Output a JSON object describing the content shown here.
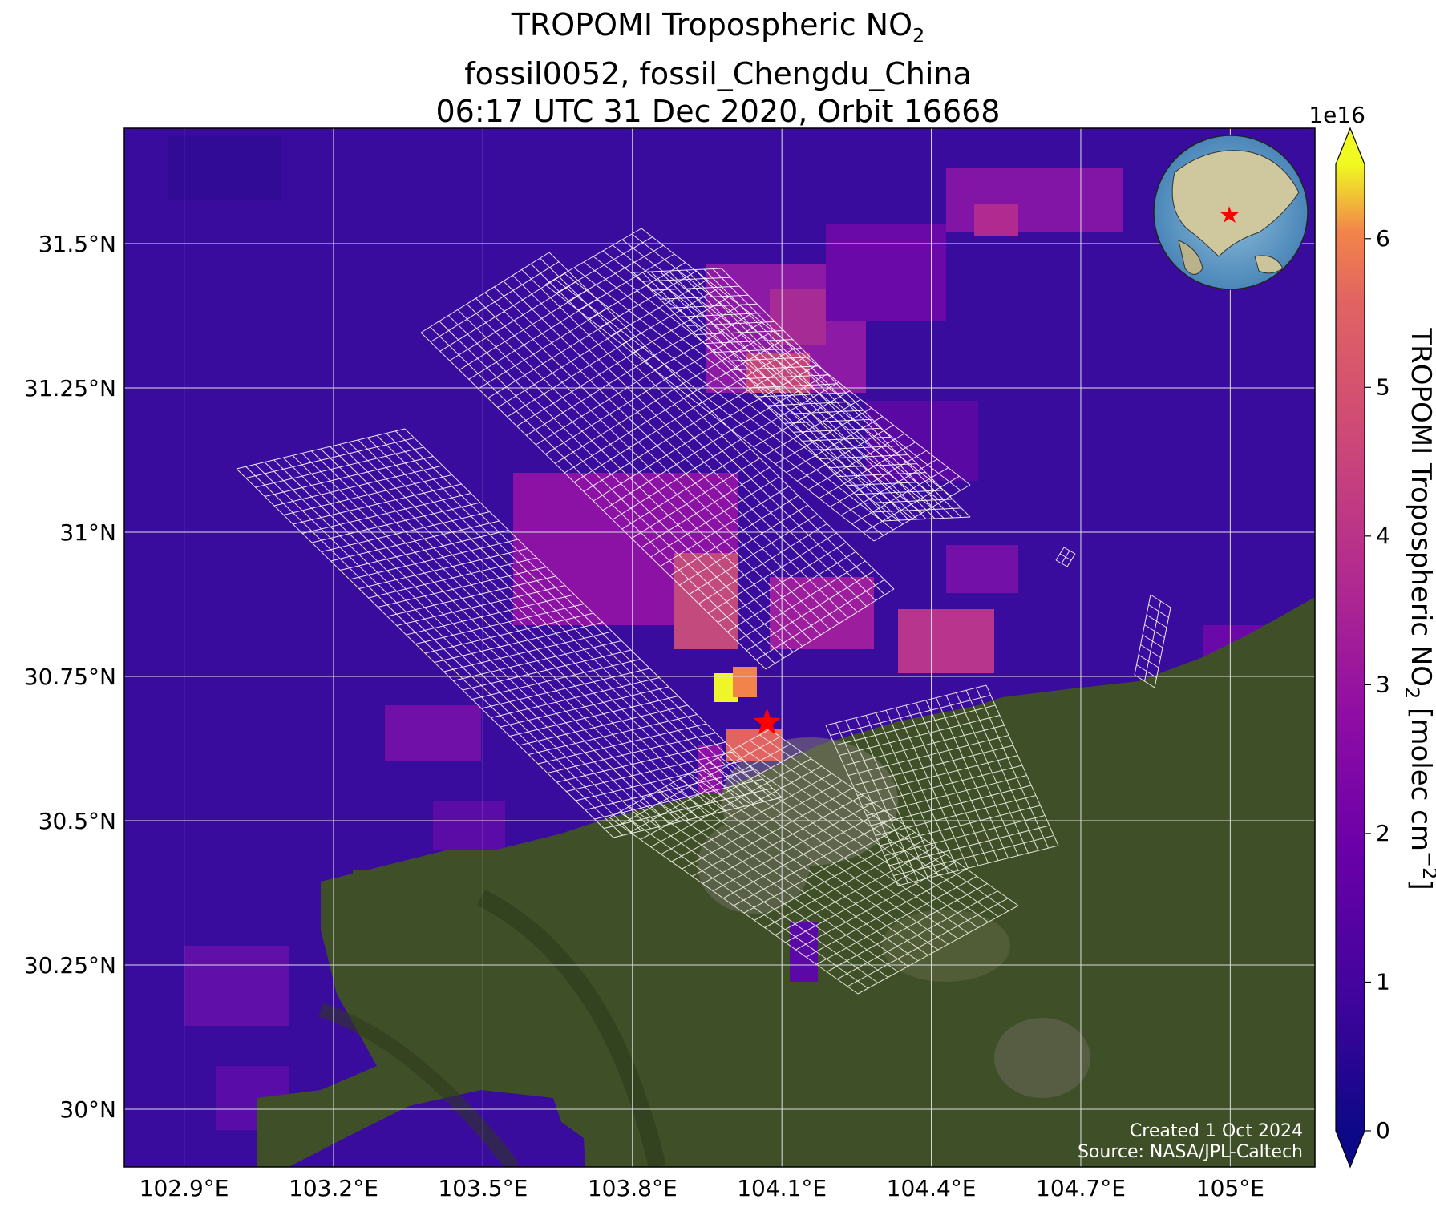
{
  "title": {
    "line1_prefix": "TROPOMI Tropospheric NO",
    "line1_sub": "2",
    "line2": "fossil0052, fossil_Chengdu_China",
    "line3": "06:17 UTC 31 Dec 2020, Orbit 16668"
  },
  "map": {
    "lon_range": [
      102.78,
      105.17
    ],
    "lat_range": [
      29.9,
      31.7
    ],
    "lon_ticks": [
      {
        "value": 102.9,
        "label": "102.9°E"
      },
      {
        "value": 103.2,
        "label": "103.2°E"
      },
      {
        "value": 103.5,
        "label": "103.5°E"
      },
      {
        "value": 103.8,
        "label": "103.8°E"
      },
      {
        "value": 104.1,
        "label": "104.1°E"
      },
      {
        "value": 104.4,
        "label": "104.4°E"
      },
      {
        "value": 104.7,
        "label": "104.7°E"
      },
      {
        "value": 105.0,
        "label": "105°E"
      }
    ],
    "lat_ticks": [
      {
        "value": 31.5,
        "label": "31.5°N"
      },
      {
        "value": 31.25,
        "label": "31.25°N"
      },
      {
        "value": 31.0,
        "label": "31°N"
      },
      {
        "value": 30.75,
        "label": "30.75°N"
      },
      {
        "value": 30.5,
        "label": "30.5°N"
      },
      {
        "value": 30.25,
        "label": "30.25°N"
      },
      {
        "value": 30.0,
        "label": "30°N"
      }
    ],
    "grid": true,
    "site_marker": {
      "lon": 104.07,
      "lat": 30.67,
      "color": "#ff0000",
      "icon": "star"
    },
    "credit_lines": [
      "Created 1 Oct 2024",
      "Source: NASA/JPL-Caltech"
    ],
    "inset": "globe-locator"
  },
  "colorbar": {
    "colormap": "plasma",
    "range": [
      0,
      6.5
    ],
    "multiplier": "1e16",
    "ticks": [
      "0",
      "1",
      "2",
      "3",
      "4",
      "5",
      "6"
    ],
    "label_prefix": "TROPOMI Tropospheric NO",
    "label_sub": "2",
    "label_suffix": " [molec cm",
    "label_sup": "−2",
    "label_end": "]",
    "extend": "both"
  },
  "colors": {
    "background_no2": "#3a0c9e",
    "land": "#3f4f28",
    "grid": "#dddddd",
    "marker": "#ff0000"
  }
}
